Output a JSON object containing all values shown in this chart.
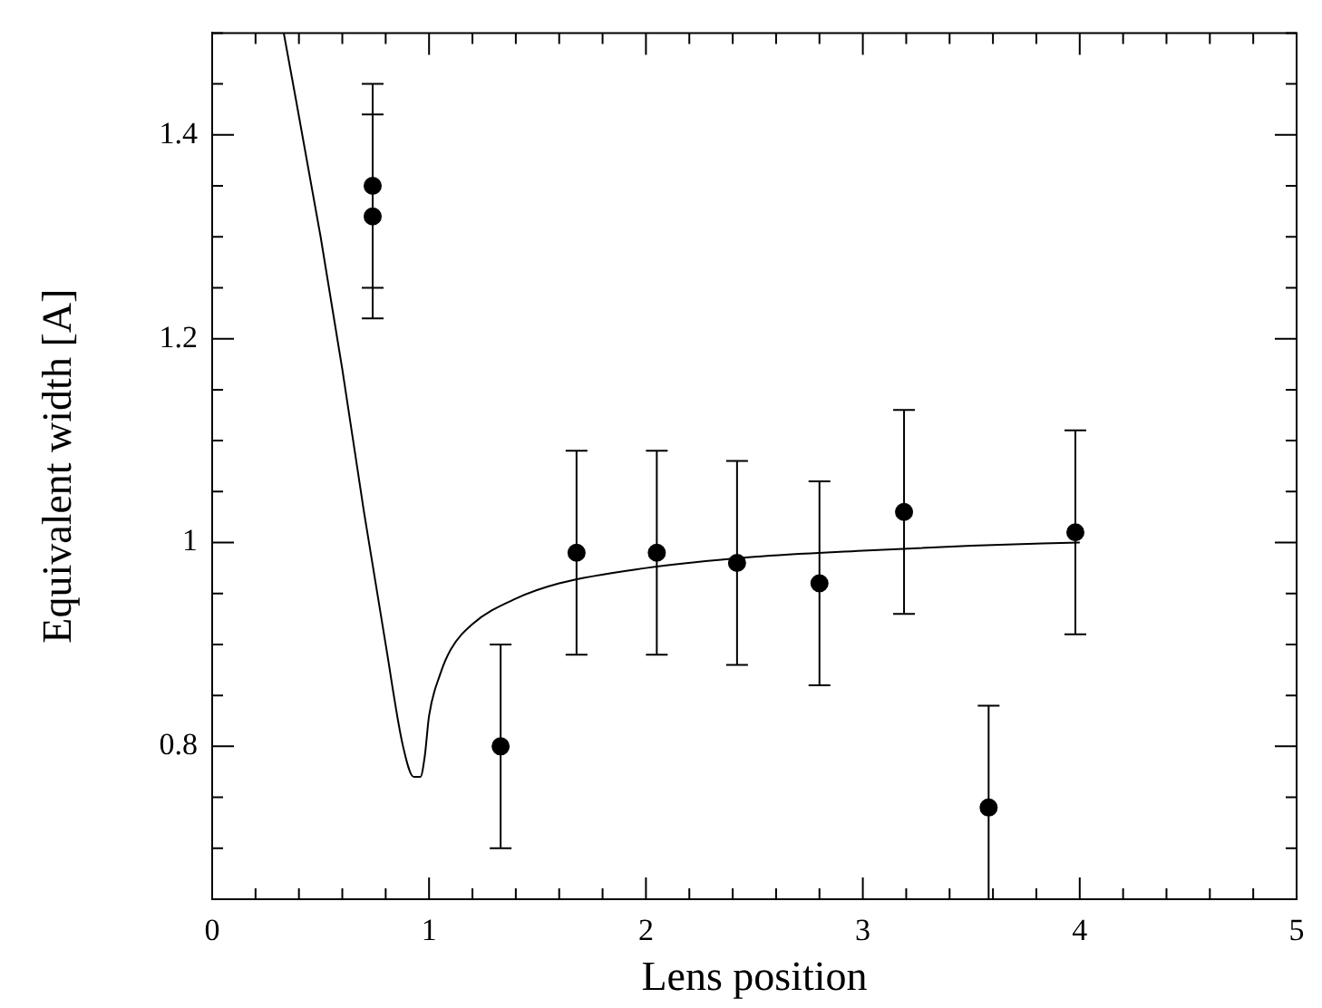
{
  "chart_data": {
    "type": "scatter",
    "xlabel": "Lens position",
    "ylabel": "Equivalent width [A]",
    "xlim": [
      0,
      5
    ],
    "ylim": [
      0.65,
      1.5
    ],
    "xticks": [
      0,
      {
        "value": 0.2,
        "label": null
      },
      {
        "value": 0.4,
        "label": null
      },
      {
        "value": 0.6,
        "label": null
      },
      {
        "value": 0.8,
        "label": null
      },
      1,
      {
        "value": 1.2,
        "label": null
      },
      {
        "value": 1.4,
        "label": null
      },
      {
        "value": 1.6,
        "label": null
      },
      {
        "value": 1.8,
        "label": null
      },
      2,
      {
        "value": 2.2,
        "label": null
      },
      {
        "value": 2.4,
        "label": null
      },
      {
        "value": 2.6,
        "label": null
      },
      {
        "value": 2.8,
        "label": null
      },
      3,
      {
        "value": 3.2,
        "label": null
      },
      {
        "value": 3.4,
        "label": null
      },
      {
        "value": 3.6,
        "label": null
      },
      {
        "value": 3.8,
        "label": null
      },
      4,
      {
        "value": 4.2,
        "label": null
      },
      {
        "value": 4.4,
        "label": null
      },
      {
        "value": 4.6,
        "label": null
      },
      {
        "value": 4.8,
        "label": null
      },
      5
    ],
    "yticks": [
      {
        "value": 0.65,
        "label": null
      },
      {
        "value": 0.7,
        "label": null
      },
      {
        "value": 0.75,
        "label": null
      },
      0.8,
      {
        "value": 0.85,
        "label": null
      },
      {
        "value": 0.9,
        "label": null
      },
      {
        "value": 0.95,
        "label": null
      },
      1,
      {
        "value": 1.05,
        "label": null
      },
      {
        "value": 1.1,
        "label": null
      },
      {
        "value": 1.15,
        "label": null
      },
      1.2,
      {
        "value": 1.25,
        "label": null
      },
      {
        "value": 1.3,
        "label": null
      },
      {
        "value": 1.35,
        "label": null
      },
      1.4,
      {
        "value": 1.45,
        "label": null
      },
      {
        "value": 1.5,
        "label": null
      }
    ],
    "grid": false,
    "legend": false,
    "series": [
      {
        "type": "scatter",
        "marker": "circle",
        "color": "#000000",
        "x": [
          0.74,
          0.74,
          1.33,
          1.68,
          2.05,
          2.42,
          2.8,
          3.19,
          3.58,
          3.98
        ],
        "values": [
          1.35,
          1.32,
          0.8,
          0.99,
          0.99,
          0.98,
          0.96,
          1.03,
          0.74,
          1.01
        ],
        "errors": [
          0.1,
          0.1,
          0.1,
          0.1,
          0.1,
          0.1,
          0.1,
          0.1,
          [
            0.65,
            0.84
          ],
          0.1
        ]
      },
      {
        "type": "line",
        "marker": "none",
        "color": "#000000",
        "x": [
          0.33,
          0.5,
          0.6,
          0.7,
          0.8,
          0.88,
          0.93,
          0.96,
          0.98,
          1.0,
          1.05,
          1.1,
          1.2,
          1.4,
          1.6,
          2.0,
          2.5,
          3.0,
          3.5,
          4.0
        ],
        "values": [
          1.5,
          1.3,
          1.17,
          1.03,
          0.9,
          0.8,
          0.77,
          0.77,
          0.79,
          0.83,
          0.87,
          0.895,
          0.92,
          0.945,
          0.96,
          0.975,
          0.986,
          0.992,
          0.997,
          1.0
        ]
      }
    ]
  }
}
